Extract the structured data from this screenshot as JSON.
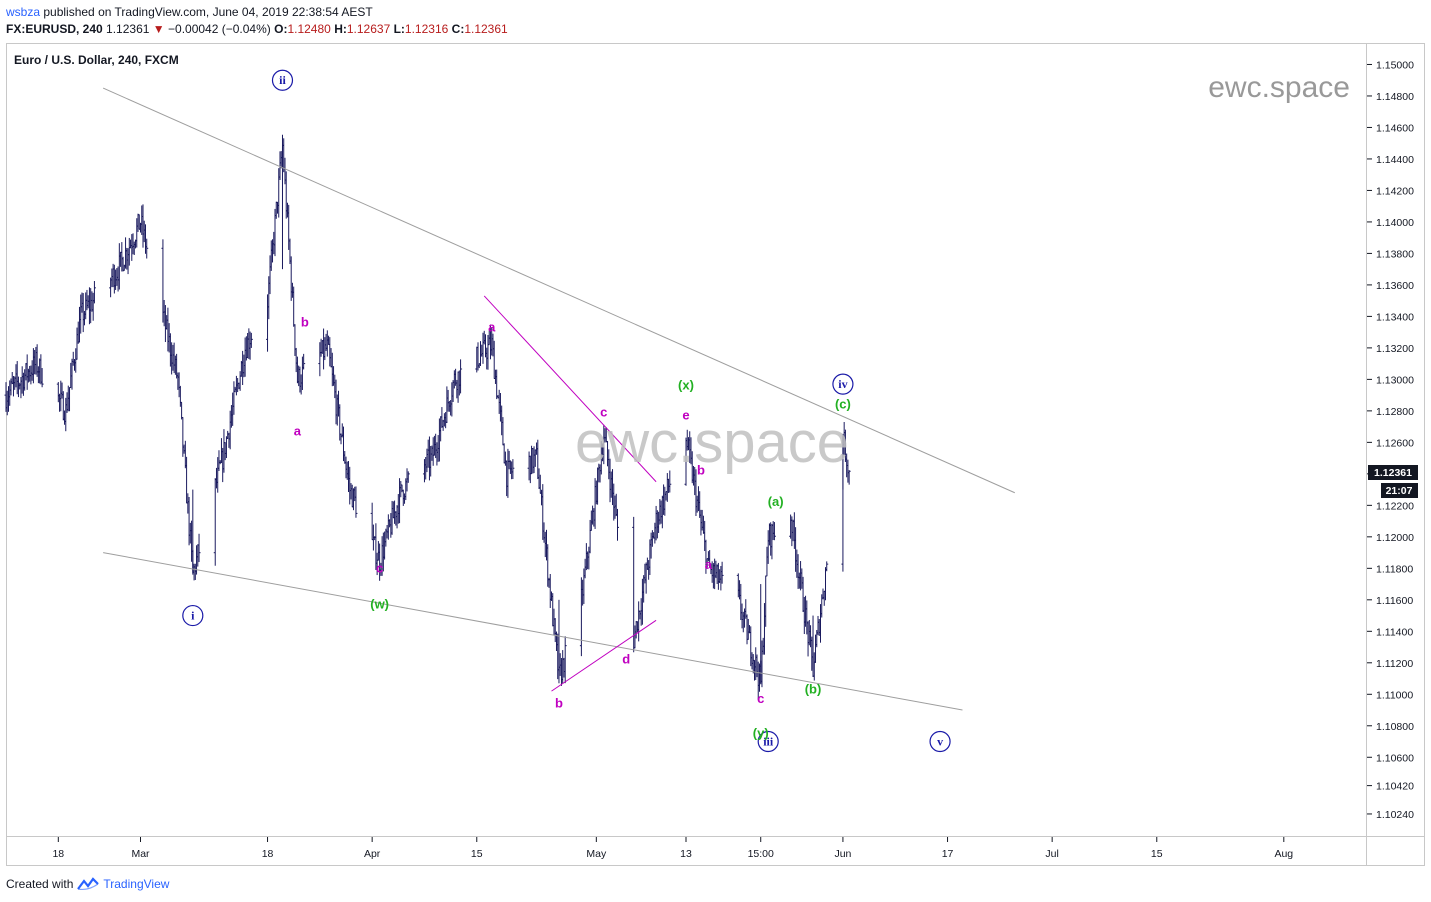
{
  "header": {
    "user": "wsbza",
    "published_text": "published on TradingView.com, June 04, 2019 22:38:54 AEST",
    "symbol": "FX:EURUSD, 240",
    "last": "1.12361",
    "arrow": "▼",
    "change": "−0.00042 (−0.04%)",
    "o_label": "O:",
    "o_value": "1.12480",
    "h_label": "H:",
    "h_value": "1.12637",
    "l_label": "L:",
    "l_value": "1.12316",
    "c_label": "C:",
    "c_value": "1.12361"
  },
  "legend_title": "Euro / U.S. Dollar, 240, FXCM",
  "watermark_small": "ewc.space",
  "watermark_big": "ewc.space",
  "footer": {
    "created_with": "Created with",
    "brand": "TradingView"
  },
  "colors": {
    "candle": "#1a1a5e",
    "magenta": "#c000c0",
    "green": "#22b022",
    "blue": "#1a1aa8",
    "trendline": "#9e9e9e",
    "price_tag": "#131722"
  },
  "chart_data": {
    "type": "bar",
    "style": "OHLC bars",
    "ylim": [
      1.101,
      1.1513
    ],
    "y_ticks": [
      "1.15000",
      "1.14800",
      "1.14600",
      "1.14400",
      "1.14200",
      "1.14000",
      "1.13800",
      "1.13600",
      "1.13400",
      "1.13200",
      "1.13000",
      "1.12800",
      "1.12600",
      "1.12400",
      "1.12200",
      "1.12000",
      "1.11800",
      "1.11600",
      "1.11400",
      "1.11200",
      "1.11000",
      "1.10800",
      "1.10600",
      "1.10420",
      "1.10240"
    ],
    "x_ticks": [
      "18",
      "Mar",
      "18",
      "Apr",
      "15",
      "May",
      "13",
      "15:00",
      "Jun",
      "17",
      "Jul",
      "15",
      "Aug"
    ],
    "x_range": [
      "2019-02-11",
      "2019-08-12"
    ],
    "last_price_label": "1.12361",
    "countdown_label": "21:07",
    "price_path_points": [
      [
        "2019-02-11",
        1.129
      ],
      [
        "2019-02-15",
        1.131
      ],
      [
        "2019-02-19",
        1.128
      ],
      [
        "2019-02-21",
        1.134
      ],
      [
        "2019-02-26",
        1.137
      ],
      [
        "2019-03-01",
        1.14
      ],
      [
        "2019-03-04",
        1.134
      ],
      [
        "2019-03-06",
        1.13
      ],
      [
        "2019-03-08",
        1.1176
      ],
      [
        "2019-03-12",
        1.125
      ],
      [
        "2019-03-15",
        1.132
      ],
      [
        "2019-03-18",
        1.135
      ],
      [
        "2019-03-20",
        1.1448
      ],
      [
        "2019-03-22",
        1.13
      ],
      [
        "2019-03-26",
        1.132
      ],
      [
        "2019-03-29",
        1.123
      ],
      [
        "2019-04-02",
        1.1185
      ],
      [
        "2019-04-05",
        1.123
      ],
      [
        "2019-04-09",
        1.125
      ],
      [
        "2019-04-12",
        1.13
      ],
      [
        "2019-04-17",
        1.1322
      ],
      [
        "2019-04-19",
        1.124
      ],
      [
        "2019-04-23",
        1.125
      ],
      [
        "2019-04-26",
        1.111
      ],
      [
        "2019-04-29",
        1.116
      ],
      [
        "2019-05-02",
        1.1265
      ],
      [
        "2019-05-06",
        1.1135
      ],
      [
        "2019-05-09",
        1.121
      ],
      [
        "2019-05-13",
        1.1263
      ],
      [
        "2019-05-16",
        1.118
      ],
      [
        "2019-05-20",
        1.116
      ],
      [
        "2019-05-23",
        1.1107
      ],
      [
        "2019-05-24",
        1.12
      ],
      [
        "2019-05-27",
        1.1213
      ],
      [
        "2019-05-30",
        1.1116
      ],
      [
        "2019-06-03",
        1.1264
      ],
      [
        "2019-06-04",
        1.12361
      ]
    ],
    "trendlines": [
      {
        "name": "upper",
        "from": [
          "2019-02-24",
          1.1485
        ],
        "to": [
          "2019-06-26",
          1.1228
        ]
      },
      {
        "name": "lower",
        "from": [
          "2019-02-24",
          1.119
        ],
        "to": [
          "2019-06-19",
          1.109
        ]
      },
      {
        "name": "channel-top",
        "from": [
          "2019-04-16",
          1.1353
        ],
        "to": [
          "2019-05-09",
          1.1235
        ]
      },
      {
        "name": "channel-bottom",
        "from": [
          "2019-04-25",
          1.1102
        ],
        "to": [
          "2019-05-09",
          1.1147
        ]
      }
    ],
    "annotations": [
      {
        "text": "ii",
        "t": "2019-03-20",
        "p": 1.149,
        "color": "blue",
        "circle": true
      },
      {
        "text": "i",
        "t": "2019-03-08",
        "p": 1.115,
        "color": "blue",
        "circle": true
      },
      {
        "text": "iii",
        "t": "2019-05-24",
        "p": 1.107,
        "color": "blue",
        "circle": true
      },
      {
        "text": "iv",
        "t": "2019-06-03",
        "p": 1.1297,
        "color": "blue",
        "circle": true
      },
      {
        "text": "v",
        "t": "2019-06-16",
        "p": 1.107,
        "color": "blue",
        "circle": true
      },
      {
        "text": "b",
        "t": "2019-03-23",
        "p": 1.1336,
        "color": "magenta"
      },
      {
        "text": "a",
        "t": "2019-03-22",
        "p": 1.1267,
        "color": "magenta"
      },
      {
        "text": "c",
        "t": "2019-04-02",
        "p": 1.118,
        "color": "magenta"
      },
      {
        "text": "(w)",
        "t": "2019-04-02",
        "p": 1.1157,
        "color": "green"
      },
      {
        "text": "a",
        "t": "2019-04-17",
        "p": 1.1333,
        "color": "magenta"
      },
      {
        "text": "c",
        "t": "2019-05-02",
        "p": 1.1279,
        "color": "magenta"
      },
      {
        "text": "b",
        "t": "2019-04-26",
        "p": 1.1094,
        "color": "magenta"
      },
      {
        "text": "d",
        "t": "2019-05-05",
        "p": 1.1122,
        "color": "magenta"
      },
      {
        "text": "(x)",
        "t": "2019-05-13",
        "p": 1.1296,
        "color": "green"
      },
      {
        "text": "e",
        "t": "2019-05-13",
        "p": 1.1277,
        "color": "magenta"
      },
      {
        "text": "b",
        "t": "2019-05-15",
        "p": 1.1242,
        "color": "magenta"
      },
      {
        "text": "a",
        "t": "2019-05-16",
        "p": 1.1182,
        "color": "magenta"
      },
      {
        "text": "(a)",
        "t": "2019-05-25",
        "p": 1.1222,
        "color": "green"
      },
      {
        "text": "c",
        "t": "2019-05-23",
        "p": 1.1097,
        "color": "magenta"
      },
      {
        "text": "(y)",
        "t": "2019-05-23",
        "p": 1.1075,
        "color": "green"
      },
      {
        "text": "(b)",
        "t": "2019-05-30",
        "p": 1.1103,
        "color": "green"
      },
      {
        "text": "(c)",
        "t": "2019-06-03",
        "p": 1.1284,
        "color": "green"
      }
    ]
  }
}
